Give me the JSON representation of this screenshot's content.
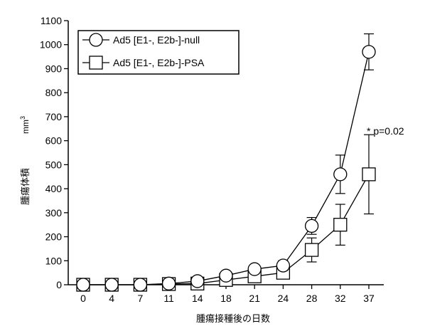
{
  "chart_data": {
    "type": "line",
    "title": "",
    "xlabel": "腫瘍接種後の日数",
    "ylabel": "腫瘍体積",
    "yunit": "mm",
    "yunit_sup": "3",
    "categories": [
      "0",
      "4",
      "7",
      "11",
      "14",
      "18",
      "21",
      "24",
      "28",
      "32",
      "37"
    ],
    "ylim": [
      0,
      1100
    ],
    "yticks": [
      0,
      100,
      200,
      300,
      400,
      500,
      600,
      700,
      800,
      900,
      1000,
      1100
    ],
    "grid": false,
    "legend_position": "top-left",
    "series": [
      {
        "name": "Ad5 [E1-, E2b-]-null",
        "marker": "circle",
        "values": [
          0,
          0,
          0,
          5,
          15,
          38,
          65,
          80,
          245,
          460,
          970
        ],
        "err": [
          0,
          0,
          0,
          3,
          5,
          10,
          15,
          20,
          35,
          80,
          75
        ]
      },
      {
        "name": "Ad5 [E1-, E2b-]-PSA",
        "marker": "square",
        "values": [
          0,
          0,
          0,
          3,
          5,
          20,
          35,
          50,
          145,
          250,
          460
        ],
        "err": [
          0,
          0,
          0,
          2,
          3,
          5,
          10,
          15,
          50,
          85,
          165
        ]
      }
    ],
    "annotation": {
      "text": "* p=0.02"
    }
  }
}
